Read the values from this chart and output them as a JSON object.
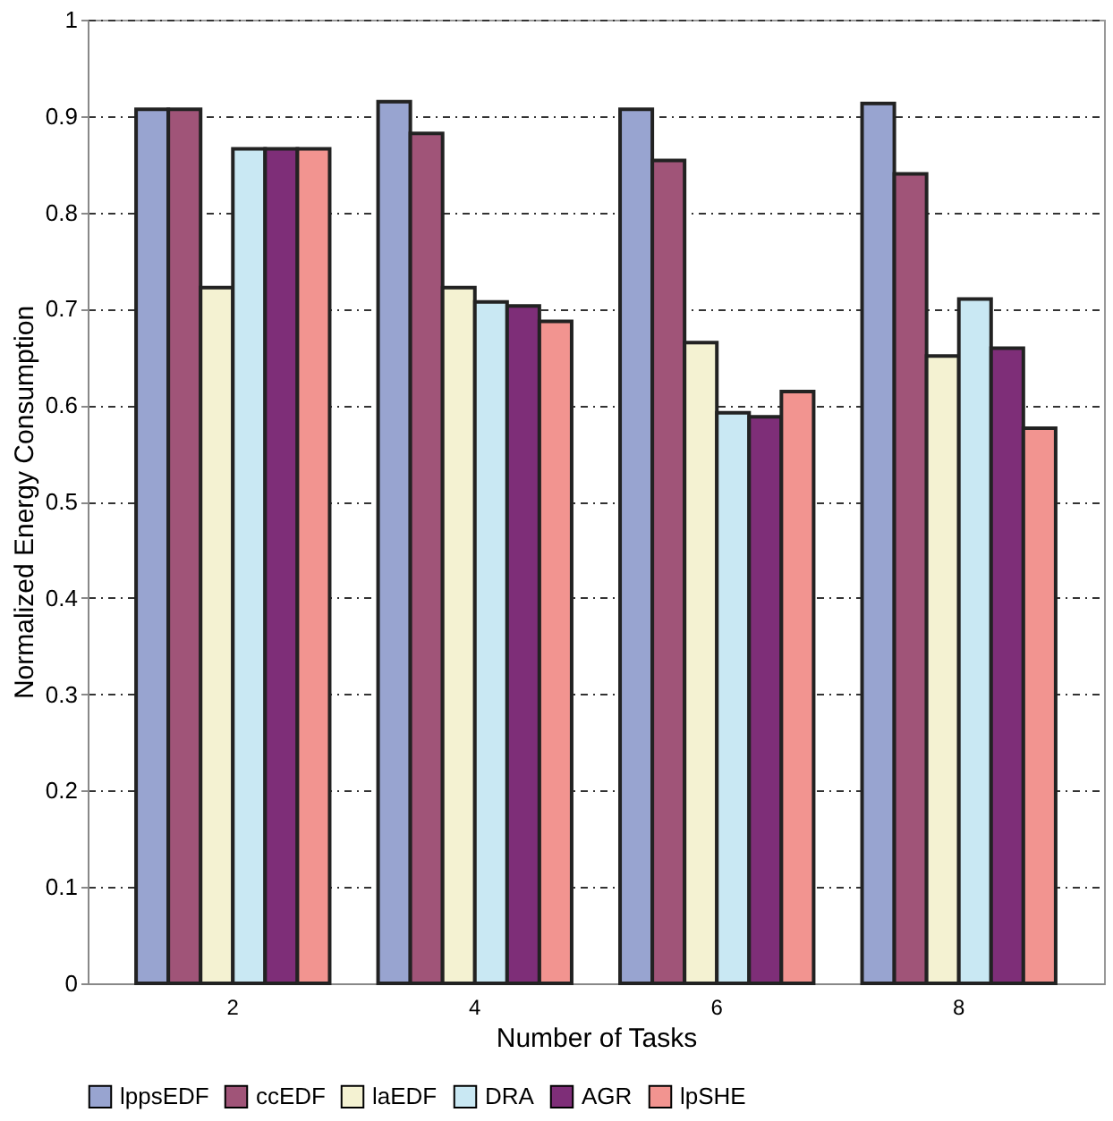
{
  "chart_data": {
    "type": "bar",
    "xlabel": "Number of Tasks",
    "ylabel": "Normalized Energy Consumption",
    "categories": [
      "2",
      "4",
      "6",
      "8"
    ],
    "series": [
      {
        "name": "lppsEDF",
        "color": "#98a4d0",
        "values": [
          0.907,
          0.915,
          0.907,
          0.913
        ]
      },
      {
        "name": "ccEDF",
        "color": "#a05478",
        "values": [
          0.907,
          0.882,
          0.854,
          0.84
        ]
      },
      {
        "name": "laEDF",
        "color": "#f4f2d2",
        "values": [
          0.722,
          0.722,
          0.665,
          0.651
        ]
      },
      {
        "name": "DRA",
        "color": "#c9e8f3",
        "values": [
          0.866,
          0.707,
          0.592,
          0.71
        ]
      },
      {
        "name": "AGR",
        "color": "#7e2e78",
        "values": [
          0.866,
          0.703,
          0.588,
          0.659
        ]
      },
      {
        "name": "lpSHE",
        "color": "#f29490",
        "values": [
          0.866,
          0.687,
          0.614,
          0.576
        ]
      }
    ],
    "ylim": [
      0,
      1
    ],
    "yticks": [
      0,
      0.1,
      0.2,
      0.3,
      0.4,
      0.5,
      0.6,
      0.7,
      0.8,
      0.9,
      1
    ],
    "grid": "y",
    "legend": "bottom"
  }
}
